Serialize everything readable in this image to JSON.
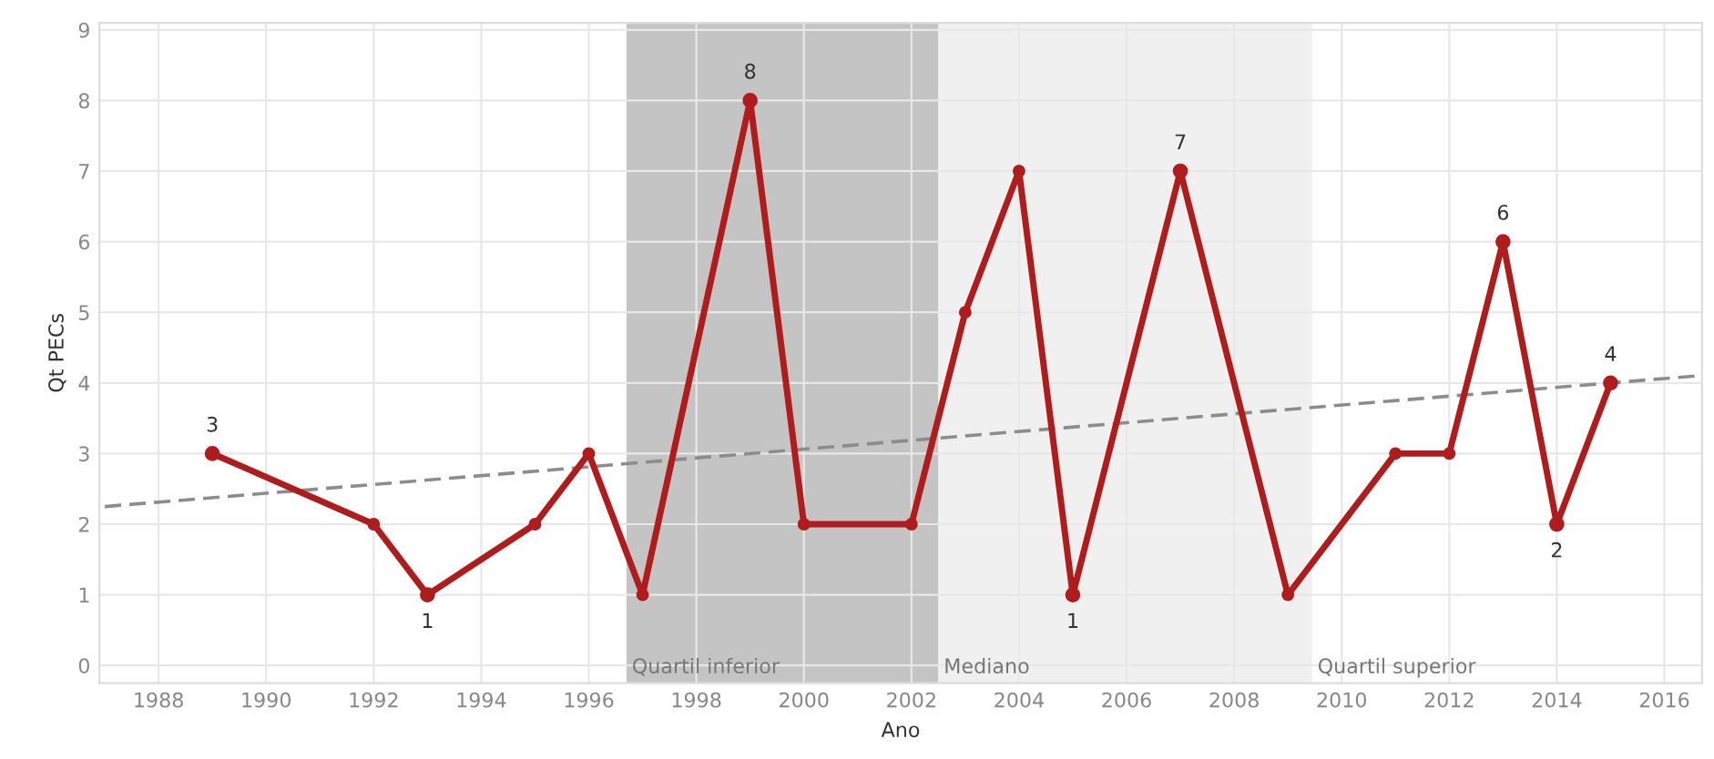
{
  "chart_data": {
    "type": "line",
    "xlabel": "Ano",
    "ylabel": "Qt PECs",
    "xlim": [
      1986.9,
      2016.7
    ],
    "xticks": [
      1988,
      1990,
      1992,
      1994,
      1996,
      1998,
      2000,
      2002,
      2004,
      2006,
      2008,
      2010,
      2012,
      2014,
      2016
    ],
    "ylim": [
      -0.25,
      9.1
    ],
    "yticks": [
      0,
      1,
      2,
      3,
      4,
      5,
      6,
      7,
      8,
      9
    ],
    "grid": true,
    "series": [
      {
        "color": "#b01c1c",
        "marker": "circle",
        "x": [
          1989,
          1992,
          1993,
          1995,
          1996,
          1997,
          1999,
          2000,
          2002,
          2003,
          2004,
          2005,
          2007,
          2009,
          2011,
          2012,
          2013,
          2014,
          2015
        ],
        "values": [
          3,
          2,
          1,
          2,
          3,
          1,
          8,
          2,
          2,
          5,
          7,
          1,
          7,
          1,
          3,
          3,
          6,
          2,
          4
        ],
        "value_labels": [
          "3",
          null,
          "1",
          null,
          null,
          null,
          "8",
          null,
          null,
          null,
          null,
          "1",
          "7",
          null,
          null,
          null,
          "6",
          "2",
          "4"
        ]
      },
      {
        "type": "line",
        "color": "#8c8c8c",
        "line_style": "dashed",
        "x": [
          1987.0,
          2016.6
        ],
        "values": [
          2.25,
          4.1
        ]
      }
    ],
    "bands": [
      {
        "axis": "x",
        "from": 1996.7,
        "to": 2002.5,
        "label": "Quartil inferior",
        "color": "#c4c4c4"
      },
      {
        "axis": "x",
        "from": 2002.5,
        "to": 2009.45,
        "label": "Mediano",
        "color": "#f0f0f0"
      }
    ],
    "annotations": [
      {
        "text": "Quartil superior",
        "x": 2009.45,
        "y": 0
      }
    ]
  }
}
